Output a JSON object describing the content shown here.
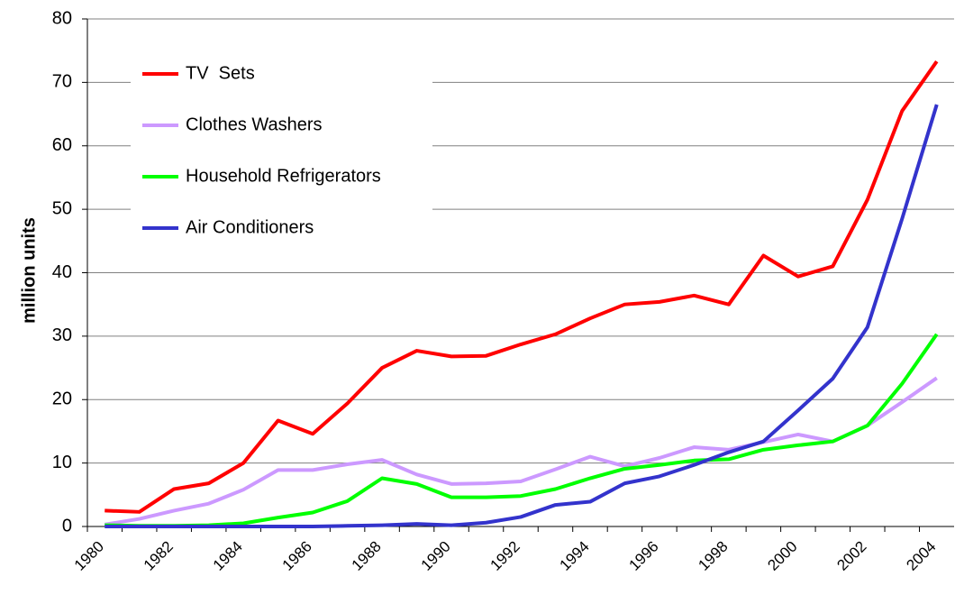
{
  "chart_data": {
    "type": "line",
    "y_label": "million units",
    "categories": [
      "1980",
      null,
      "1982",
      null,
      "1984",
      null,
      "1986",
      null,
      "1988",
      null,
      "1990",
      null,
      "1992",
      null,
      "1994",
      null,
      "1996",
      null,
      "1998",
      null,
      "2000",
      null,
      "2002",
      null,
      "2004"
    ],
    "series": [
      {
        "name": "TV  Sets",
        "color": "#ff0000",
        "values": [
          2.5,
          2.3,
          5.9,
          6.8,
          10,
          16.7,
          14.6,
          19.4,
          25,
          27.7,
          26.8,
          26.9,
          28.7,
          30.3,
          32.8,
          35,
          35.4,
          36.4,
          35,
          42.7,
          39.4,
          41,
          51.5,
          65.5,
          73.3
        ]
      },
      {
        "name": "Clothes Washers",
        "color": "#cc99ff",
        "values": [
          0.3,
          1.2,
          2.5,
          3.6,
          5.8,
          8.9,
          8.9,
          9.8,
          10.5,
          8.2,
          6.7,
          6.8,
          7.1,
          9,
          11,
          9.5,
          10.8,
          12.5,
          12.1,
          13.3,
          14.5,
          13.4,
          15.9,
          19.6,
          23.4
        ]
      },
      {
        "name": "Household Refrigerators",
        "color": "#00ff00",
        "values": [
          0.2,
          0.1,
          0.1,
          0.2,
          0.5,
          1.4,
          2.2,
          4,
          7.6,
          6.7,
          4.6,
          4.6,
          4.8,
          5.9,
          7.6,
          9.1,
          9.7,
          10.4,
          10.6,
          12.1,
          12.8,
          13.4,
          15.9,
          22.5,
          30.3
        ]
      },
      {
        "name": "Air Conditioners",
        "color": "#3333cc",
        "values": [
          0,
          0,
          0,
          0,
          0,
          0,
          0,
          0.1,
          0.2,
          0.4,
          0.2,
          0.6,
          1.5,
          3.4,
          3.9,
          6.8,
          7.9,
          9.7,
          11.7,
          13.4,
          18.3,
          23.3,
          31.4,
          48.5,
          66.5
        ]
      }
    ],
    "ylim": [
      0,
      80
    ],
    "yticks": [
      0,
      10,
      20,
      30,
      40,
      50,
      60,
      70,
      80
    ],
    "grid": true,
    "legend": "upper left"
  }
}
